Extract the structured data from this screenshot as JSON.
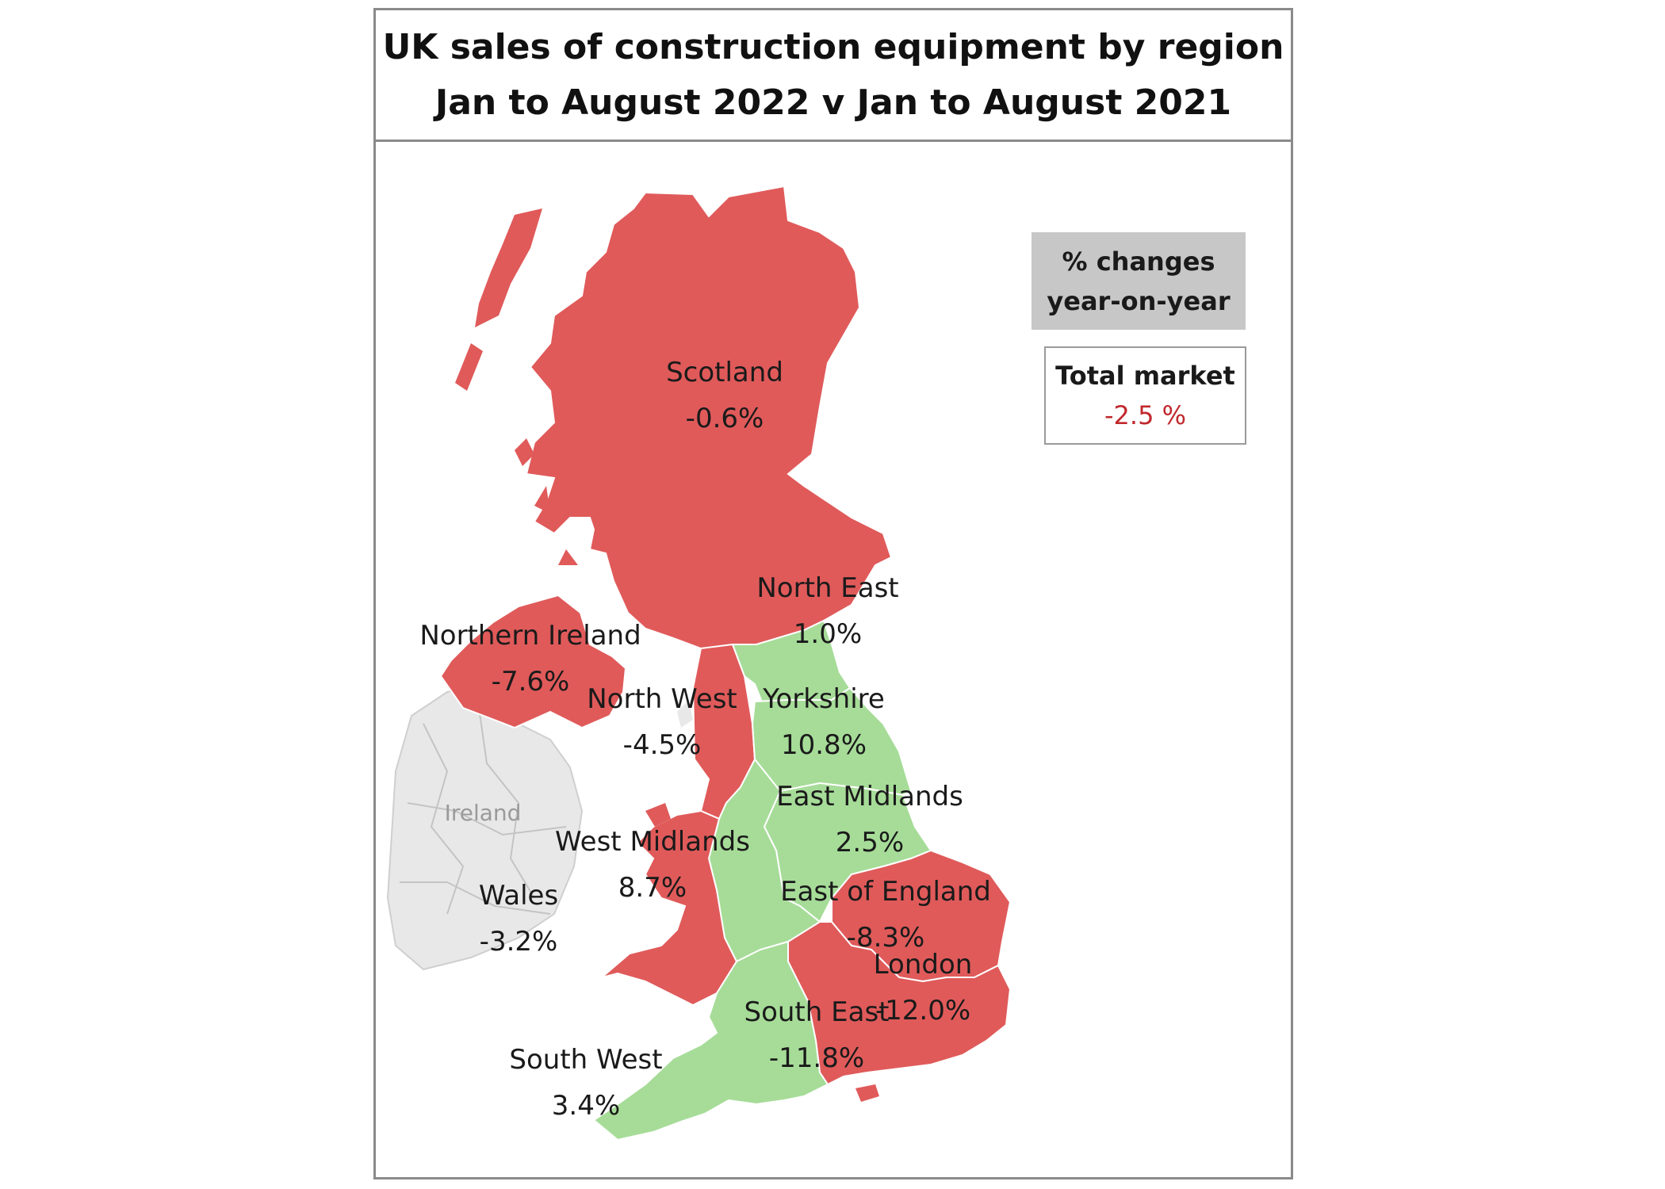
{
  "title": {
    "line1": "UK sales of construction  equipment by region",
    "line2": "Jan to August 2022  v Jan to August 2021"
  },
  "legend": {
    "line1": "% changes",
    "line2": "year-on-year",
    "total_label": "Total market",
    "total_value": "-2.5 %"
  },
  "background_label": "Ireland",
  "colors": {
    "decline": "#e05a5a",
    "growth": "#a6dc98",
    "background_land": "#e8e8e8",
    "total_value": "#c0282d"
  },
  "regions": [
    {
      "id": "scotland",
      "name": "Scotland",
      "value": "-0.6%"
    },
    {
      "id": "northern-ireland",
      "name": "Northern Ireland",
      "value": "-7.6%"
    },
    {
      "id": "north-east",
      "name": "North East",
      "value": "1.0%"
    },
    {
      "id": "north-west",
      "name": "North West",
      "value": "-4.5%"
    },
    {
      "id": "yorkshire",
      "name": "Yorkshire",
      "value": "10.8%"
    },
    {
      "id": "east-midlands",
      "name": "East Midlands",
      "value": "2.5%"
    },
    {
      "id": "west-midlands",
      "name": "West Midlands",
      "value": "8.7%"
    },
    {
      "id": "wales",
      "name": "Wales",
      "value": "-3.2%"
    },
    {
      "id": "east-of-england",
      "name": "East of England",
      "value": "-8.3%"
    },
    {
      "id": "london",
      "name": "London",
      "value": "-12.0%"
    },
    {
      "id": "south-east",
      "name": "South East",
      "value": "-11.8%"
    },
    {
      "id": "south-west",
      "name": "South West",
      "value": "3.4%"
    }
  ]
}
